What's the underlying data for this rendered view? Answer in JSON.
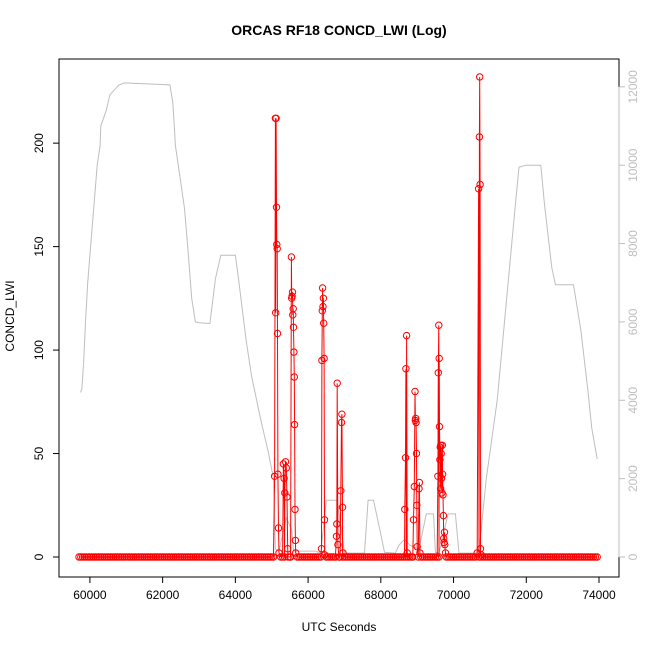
{
  "chart_data": {
    "type": "line",
    "title": "ORCAS RF18 CONCD_LWI (Log)",
    "xlabel": "UTC Seconds",
    "ylabel": "CONCD_LWI",
    "xlim": [
      59700,
      74000
    ],
    "ylim": [
      0,
      231
    ],
    "y2lim": [
      0,
      12200
    ],
    "x_ticks": [
      60000,
      62000,
      64000,
      66000,
      68000,
      70000,
      72000,
      74000
    ],
    "y_ticks": [
      0,
      50,
      100,
      150,
      200
    ],
    "y2_ticks": [
      0,
      2000,
      4000,
      6000,
      8000,
      10000,
      12000
    ],
    "colors": {
      "concentration": "#ff0000",
      "altitude": "#bebebe"
    },
    "grid": false,
    "legend": "none",
    "baseline": {
      "x_start": 59700,
      "x_end": 73950,
      "step": 50,
      "y": 0
    },
    "series": [
      {
        "axis": "left",
        "style": "line+points",
        "points": [
          [
            65050,
            0
          ],
          [
            65080,
            39
          ],
          [
            65100,
            212
          ],
          [
            65110,
            118
          ],
          [
            65120,
            212
          ],
          [
            65130,
            169
          ],
          [
            65140,
            151
          ],
          [
            65150,
            149
          ],
          [
            65160,
            108
          ],
          [
            65170,
            40
          ],
          [
            65185,
            14
          ],
          [
            65200,
            2
          ],
          [
            65300,
            0
          ],
          [
            65320,
            45
          ],
          [
            65340,
            38
          ],
          [
            65360,
            31
          ],
          [
            65380,
            46
          ],
          [
            65400,
            43
          ],
          [
            65420,
            29
          ],
          [
            65440,
            4
          ],
          [
            65520,
            0
          ],
          [
            65540,
            145
          ],
          [
            65550,
            125
          ],
          [
            65560,
            126
          ],
          [
            65570,
            128
          ],
          [
            65580,
            117
          ],
          [
            65590,
            120
          ],
          [
            65600,
            111
          ],
          [
            65610,
            99
          ],
          [
            65620,
            87
          ],
          [
            65630,
            64
          ],
          [
            65640,
            23
          ],
          [
            65650,
            8
          ],
          [
            65660,
            2
          ],
          [
            66350,
            0
          ],
          [
            66370,
            4
          ],
          [
            66380,
            95
          ],
          [
            66390,
            119
          ],
          [
            66400,
            130
          ],
          [
            66410,
            121
          ],
          [
            66420,
            125
          ],
          [
            66430,
            113
          ],
          [
            66440,
            96
          ],
          [
            66450,
            18
          ],
          [
            66460,
            1
          ],
          [
            66750,
            0
          ],
          [
            66780,
            10
          ],
          [
            66790,
            16
          ],
          [
            66800,
            84
          ],
          [
            66820,
            6
          ],
          [
            66880,
            0
          ],
          [
            66900,
            32
          ],
          [
            66920,
            65
          ],
          [
            66930,
            69
          ],
          [
            66945,
            24
          ],
          [
            66960,
            2
          ],
          [
            68650,
            0
          ],
          [
            68660,
            23
          ],
          [
            68680,
            48
          ],
          [
            68690,
            91
          ],
          [
            68710,
            107
          ],
          [
            68725,
            2
          ],
          [
            68880,
            0
          ],
          [
            68900,
            18
          ],
          [
            68920,
            34
          ],
          [
            68940,
            80
          ],
          [
            68950,
            66
          ],
          [
            68960,
            67
          ],
          [
            68970,
            65
          ],
          [
            68980,
            50
          ],
          [
            68990,
            25
          ],
          [
            69000,
            5
          ],
          [
            69030,
            0
          ],
          [
            69050,
            33
          ],
          [
            69060,
            36
          ],
          [
            69075,
            2
          ],
          [
            69550,
            0
          ],
          [
            69570,
            39
          ],
          [
            69580,
            89
          ],
          [
            69595,
            112
          ],
          [
            69605,
            96
          ],
          [
            69615,
            63
          ],
          [
            69625,
            47
          ],
          [
            69635,
            53
          ],
          [
            69645,
            33
          ],
          [
            69650,
            54
          ],
          [
            69660,
            50
          ],
          [
            69670,
            38
          ],
          [
            69680,
            31
          ],
          [
            69690,
            54
          ],
          [
            69700,
            40
          ],
          [
            69710,
            30
          ],
          [
            69720,
            20
          ],
          [
            69730,
            9
          ],
          [
            69740,
            7
          ],
          [
            69750,
            12
          ],
          [
            69760,
            6
          ],
          [
            69780,
            2
          ],
          [
            70600,
            0
          ],
          [
            70650,
            2
          ],
          [
            70690,
            178
          ],
          [
            70710,
            203
          ],
          [
            70720,
            232
          ],
          [
            70730,
            180
          ],
          [
            70740,
            4
          ],
          [
            70760,
            1
          ]
        ]
      },
      {
        "name": "",
        "axis": "right",
        "style": "line",
        "points": [
          [
            59740,
            4200
          ],
          [
            59780,
            4300
          ],
          [
            59830,
            5000
          ],
          [
            59880,
            6000
          ],
          [
            59940,
            7000
          ],
          [
            60000,
            7700
          ],
          [
            60200,
            10000
          ],
          [
            60280,
            10500
          ],
          [
            60300,
            11000
          ],
          [
            60450,
            11400
          ],
          [
            60550,
            11800
          ],
          [
            60800,
            12050
          ],
          [
            60950,
            12100
          ],
          [
            62200,
            12050
          ],
          [
            62280,
            11600
          ],
          [
            62320,
            11000
          ],
          [
            62350,
            10500
          ],
          [
            62600,
            8900
          ],
          [
            62700,
            7800
          ],
          [
            62800,
            6600
          ],
          [
            62900,
            6000
          ],
          [
            63000,
            5980
          ],
          [
            63300,
            5960
          ],
          [
            63450,
            7100
          ],
          [
            63600,
            7700
          ],
          [
            64000,
            7700
          ],
          [
            64100,
            7000
          ],
          [
            64300,
            5500
          ],
          [
            64450,
            4600
          ],
          [
            64700,
            3500
          ],
          [
            64900,
            2700
          ],
          [
            65050,
            2000
          ],
          [
            65100,
            200
          ],
          [
            65200,
            150
          ],
          [
            65400,
            1000
          ],
          [
            65550,
            700
          ],
          [
            65600,
            150
          ],
          [
            66200,
            150
          ],
          [
            66350,
            100
          ],
          [
            66500,
            1450
          ],
          [
            66800,
            1450
          ],
          [
            67000,
            100
          ],
          [
            67550,
            100
          ],
          [
            67650,
            1450
          ],
          [
            67800,
            1450
          ],
          [
            67950,
            800
          ],
          [
            68100,
            120
          ],
          [
            68400,
            100
          ],
          [
            68500,
            300
          ],
          [
            68650,
            450
          ],
          [
            68800,
            300
          ],
          [
            69050,
            200
          ],
          [
            69250,
            1100
          ],
          [
            69450,
            1100
          ],
          [
            69500,
            120
          ],
          [
            69600,
            100
          ],
          [
            69850,
            1100
          ],
          [
            70050,
            1100
          ],
          [
            70150,
            100
          ],
          [
            70600,
            100
          ],
          [
            70700,
            150
          ],
          [
            70900,
            2000
          ],
          [
            71200,
            4000
          ],
          [
            71450,
            6500
          ],
          [
            71700,
            9000
          ],
          [
            71800,
            9950
          ],
          [
            72000,
            10000
          ],
          [
            72400,
            10000
          ],
          [
            72500,
            9000
          ],
          [
            72700,
            7400
          ],
          [
            72800,
            6950
          ],
          [
            73300,
            6950
          ],
          [
            73500,
            5800
          ],
          [
            73700,
            4200
          ],
          [
            73800,
            3300
          ],
          [
            73950,
            2500
          ]
        ]
      }
    ]
  }
}
